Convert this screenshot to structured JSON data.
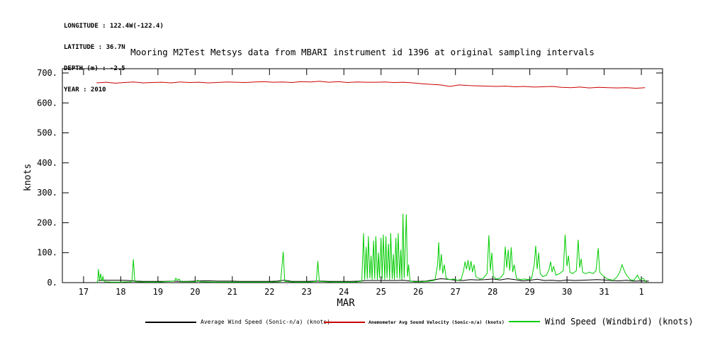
{
  "header": {
    "longitude": "LONGITUDE : 122.4W(-122.4)",
    "latitude": "LATITUDE : 36.7N",
    "depth": "DEPTH (m) : -2.5",
    "year": "YEAR : 2010"
  },
  "title": "Mooring M2Test Metsys data from MBARI instrument id 1396 at original sampling intervals",
  "legend": [
    {
      "label": "Average Wind Speed (Sonic-n/a) (knots)",
      "color": "#000000"
    },
    {
      "label": "Anemometer Avg Sound Velocity (Sonic-n/a) (knots)",
      "color": "#cc0000"
    },
    {
      "label": "Wind Speed (Windbird) (knots)",
      "color": "#00cc00"
    }
  ],
  "chart_data": {
    "type": "line",
    "title": "Mooring M2Test Metsys data from MBARI instrument id 1396 at original sampling intervals",
    "xlabel": "MAR",
    "ylabel": "knots",
    "xlim": [
      16.43,
      32.57
    ],
    "ylim": [
      0,
      700
    ],
    "yticks": [
      0,
      100,
      200,
      300,
      400,
      500,
      600,
      700
    ],
    "ytick_labels": [
      "0.",
      "100.",
      "200.",
      "300.",
      "400.",
      "500.",
      "600.",
      "700."
    ],
    "xticks": [
      17,
      18,
      19,
      20,
      21,
      22,
      23,
      24,
      25,
      26,
      27,
      28,
      29,
      30,
      31,
      32
    ],
    "xtick_labels": [
      "17",
      "18",
      "19",
      "20",
      "21",
      "22",
      "23",
      "24",
      "25",
      "26",
      "27",
      "28",
      "29",
      "30",
      "31",
      "1"
    ],
    "grid": false,
    "legend_position": "bottom",
    "series": [
      {
        "id": "avg-wind-speed",
        "name": "Average Wind Speed (Sonic-n/a) (knots)",
        "color": "#000000",
        "x": [
          17.4,
          17.6,
          17.8,
          18.0,
          18.2,
          18.4,
          18.6,
          18.8,
          19.0,
          19.2,
          19.4,
          19.6,
          19.8,
          20.0,
          20.2,
          20.4,
          20.6,
          20.8,
          21.0,
          21.2,
          21.4,
          21.6,
          21.8,
          22.0,
          22.2,
          22.4,
          22.6,
          22.8,
          23.0,
          23.2,
          23.4,
          23.6,
          23.8,
          24.0,
          24.2,
          24.4,
          24.6,
          24.8,
          25.0,
          25.2,
          25.4,
          25.6,
          25.8,
          26.0,
          26.2,
          26.4,
          26.6,
          26.8,
          27.0,
          27.2,
          27.4,
          27.6,
          27.8,
          28.0,
          28.2,
          28.4,
          28.6,
          28.8,
          29.0,
          29.2,
          29.4,
          29.6,
          29.8,
          30.0,
          30.2,
          30.4,
          30.6,
          30.8,
          31.0,
          31.2,
          31.4,
          31.6,
          31.8,
          32.0,
          32.2
        ],
        "y": [
          7,
          8,
          8,
          8,
          7,
          5,
          4,
          4,
          4,
          4,
          5,
          4,
          4,
          5,
          6,
          6,
          5,
          5,
          5,
          4,
          4,
          4,
          4,
          4,
          5,
          8,
          4,
          4,
          4,
          5,
          5,
          4,
          4,
          4,
          4,
          5,
          7,
          7,
          7,
          7,
          7,
          8,
          5,
          4,
          5,
          9,
          13,
          11,
          8,
          7,
          10,
          9,
          10,
          12,
          9,
          13,
          10,
          6,
          8,
          11,
          7,
          8,
          6,
          9,
          7,
          8,
          9,
          10,
          9,
          7,
          6,
          8,
          5,
          6,
          5
        ]
      },
      {
        "id": "sound-velocity",
        "name": "Anemometer Avg Sound Velocity (Sonic-n/a) (knots)",
        "color": "#cc0000",
        "x": [
          17.35,
          17.6,
          17.85,
          18.1,
          18.35,
          18.6,
          18.85,
          19.1,
          19.35,
          19.6,
          19.85,
          20.1,
          20.35,
          20.6,
          20.85,
          21.1,
          21.35,
          21.6,
          21.85,
          22.1,
          22.35,
          22.6,
          22.85,
          23.1,
          23.35,
          23.6,
          23.85,
          24.1,
          24.35,
          24.6,
          24.85,
          25.1,
          25.35,
          25.6,
          25.85,
          26.1,
          26.35,
          26.6,
          26.85,
          27.1,
          27.35,
          27.6,
          27.85,
          28.1,
          28.35,
          28.6,
          28.85,
          29.1,
          29.35,
          29.6,
          29.85,
          30.1,
          30.35,
          30.6,
          30.85,
          31.1,
          31.35,
          31.6,
          31.85,
          32.1
        ],
        "y": [
          667,
          669,
          666,
          668,
          670,
          667,
          668,
          669,
          667,
          670,
          668,
          669,
          667,
          668,
          670,
          669,
          668,
          670,
          671,
          669,
          670,
          668,
          671,
          670,
          672,
          669,
          671,
          668,
          670,
          669,
          669,
          670,
          668,
          669,
          667,
          664,
          662,
          660,
          655,
          660,
          658,
          657,
          656,
          655,
          656,
          654,
          655,
          653,
          654,
          655,
          652,
          651,
          653,
          650,
          652,
          651,
          650,
          651,
          649,
          651
        ]
      },
      {
        "id": "windbird-wind-speed",
        "name": "Wind Speed (Windbird) (knots)",
        "color": "#00cc00",
        "x": [
          17.35,
          17.38,
          17.4,
          17.43,
          17.46,
          17.49,
          17.52,
          17.56,
          17.75,
          18.0,
          18.3,
          18.34,
          18.38,
          18.7,
          19.0,
          19.44,
          19.48,
          19.52,
          19.57,
          19.62,
          20.0,
          20.08,
          20.13,
          20.5,
          21.0,
          21.5,
          22.0,
          22.3,
          22.37,
          22.41,
          22.7,
          23.0,
          23.26,
          23.3,
          23.34,
          23.7,
          24.0,
          24.3,
          24.48,
          24.53,
          24.56,
          24.6,
          24.63,
          24.66,
          24.7,
          24.73,
          24.76,
          24.8,
          24.83,
          24.86,
          24.9,
          24.93,
          24.96,
          25.0,
          25.03,
          25.06,
          25.1,
          25.13,
          25.16,
          25.2,
          25.23,
          25.26,
          25.3,
          25.33,
          25.36,
          25.4,
          25.43,
          25.46,
          25.5,
          25.53,
          25.56,
          25.59,
          25.62,
          25.65,
          25.68,
          25.71,
          25.74,
          25.78,
          25.9,
          26.1,
          26.3,
          26.45,
          26.52,
          26.55,
          26.58,
          26.62,
          26.66,
          26.7,
          26.75,
          26.85,
          26.95,
          27.05,
          27.15,
          27.22,
          27.26,
          27.3,
          27.34,
          27.38,
          27.42,
          27.46,
          27.5,
          27.55,
          27.65,
          27.75,
          27.85,
          27.9,
          27.94,
          27.98,
          28.02,
          28.1,
          28.2,
          28.3,
          28.34,
          28.38,
          28.42,
          28.46,
          28.5,
          28.54,
          28.58,
          28.64,
          28.75,
          28.85,
          28.95,
          29.05,
          29.12,
          29.16,
          29.2,
          29.24,
          29.28,
          29.35,
          29.45,
          29.52,
          29.56,
          29.6,
          29.64,
          29.7,
          29.8,
          29.9,
          29.95,
          30.0,
          30.04,
          30.08,
          30.15,
          30.25,
          30.3,
          30.34,
          30.38,
          30.42,
          30.5,
          30.6,
          30.7,
          30.78,
          30.84,
          30.88,
          30.95,
          31.05,
          31.15,
          31.25,
          31.35,
          31.42,
          31.48,
          31.54,
          31.6,
          31.7,
          31.8,
          31.9,
          31.95,
          32.05,
          32.1,
          32.15
        ],
        "y": [
          0,
          5,
          45,
          8,
          30,
          5,
          20,
          3,
          2,
          2,
          3,
          78,
          3,
          2,
          2,
          5,
          15,
          8,
          12,
          3,
          3,
          8,
          3,
          2,
          2,
          2,
          2,
          3,
          103,
          4,
          2,
          2,
          4,
          72,
          4,
          2,
          2,
          2,
          5,
          165,
          10,
          120,
          12,
          155,
          15,
          90,
          10,
          140,
          12,
          155,
          10,
          100,
          15,
          150,
          12,
          160,
          10,
          155,
          15,
          130,
          10,
          165,
          12,
          95,
          10,
          150,
          15,
          165,
          12,
          110,
          10,
          230,
          15,
          120,
          228,
          20,
          60,
          5,
          3,
          3,
          5,
          8,
          60,
          135,
          40,
          95,
          30,
          60,
          15,
          10,
          12,
          8,
          10,
          40,
          70,
          45,
          75,
          40,
          72,
          35,
          60,
          20,
          12,
          15,
          30,
          158,
          40,
          100,
          20,
          12,
          15,
          30,
          120,
          50,
          110,
          40,
          118,
          35,
          60,
          15,
          10,
          12,
          10,
          15,
          60,
          123,
          45,
          100,
          30,
          20,
          25,
          45,
          70,
          35,
          55,
          25,
          30,
          40,
          160,
          55,
          90,
          35,
          30,
          40,
          143,
          50,
          80,
          35,
          30,
          35,
          30,
          40,
          115,
          35,
          25,
          15,
          10,
          8,
          20,
          35,
          60,
          40,
          25,
          10,
          8,
          25,
          10,
          15,
          5,
          2
        ]
      }
    ]
  }
}
